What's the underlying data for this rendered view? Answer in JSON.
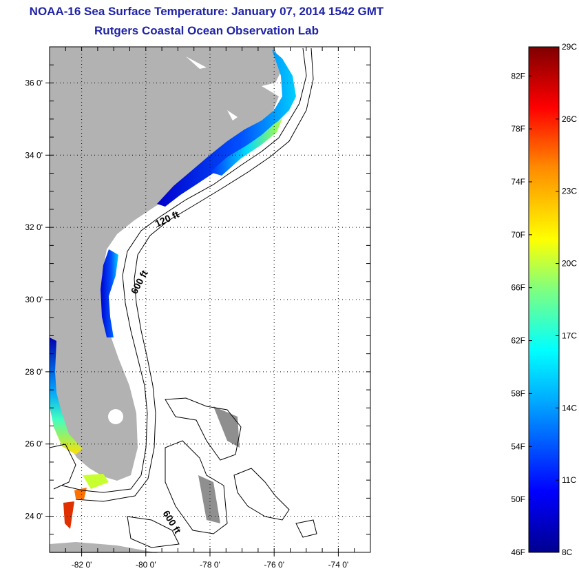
{
  "header": {
    "title": "NOAA-16 Sea Surface Temperature:  January 07, 2014 1542 GMT",
    "subtitle": "Rutgers Coastal Ocean Observation Lab"
  },
  "map": {
    "lon_range": [
      -83,
      -73
    ],
    "lat_range": [
      23,
      37
    ],
    "lat_ticks": [
      {
        "value": 36,
        "label": "36 0'"
      },
      {
        "value": 34,
        "label": "34 0'"
      },
      {
        "value": 32,
        "label": "32 0'"
      },
      {
        "value": 30,
        "label": "30 0'"
      },
      {
        "value": 28,
        "label": "28 0'"
      },
      {
        "value": 26,
        "label": "26 0'"
      },
      {
        "value": 24,
        "label": "24 0'"
      }
    ],
    "lon_ticks": [
      {
        "value": -82,
        "label": "-82 0'"
      },
      {
        "value": -80,
        "label": "-80 0'"
      },
      {
        "value": -78,
        "label": "-78 0'"
      },
      {
        "value": -76,
        "label": "-76 0'"
      },
      {
        "value": -74,
        "label": "-74 0'"
      }
    ],
    "contour_labels": [
      "120 ft",
      "600 ft",
      "600 ft"
    ],
    "colors": {
      "land": "#b2b2b2",
      "grid": "#000000",
      "contour": "#000000"
    }
  },
  "colorbar": {
    "f_labels": [
      "82F",
      "78F",
      "74F",
      "70F",
      "66F",
      "62F",
      "58F",
      "54F",
      "50F",
      "46F"
    ],
    "c_labels": [
      "29C",
      "26C",
      "23C",
      "20C",
      "17C",
      "14C",
      "11C",
      "8C"
    ],
    "colors": [
      "#00008f",
      "#0000ff",
      "#00bfff",
      "#00ffff",
      "#7fff7f",
      "#ffff00",
      "#ff7f00",
      "#ff0000",
      "#7f0000"
    ]
  }
}
